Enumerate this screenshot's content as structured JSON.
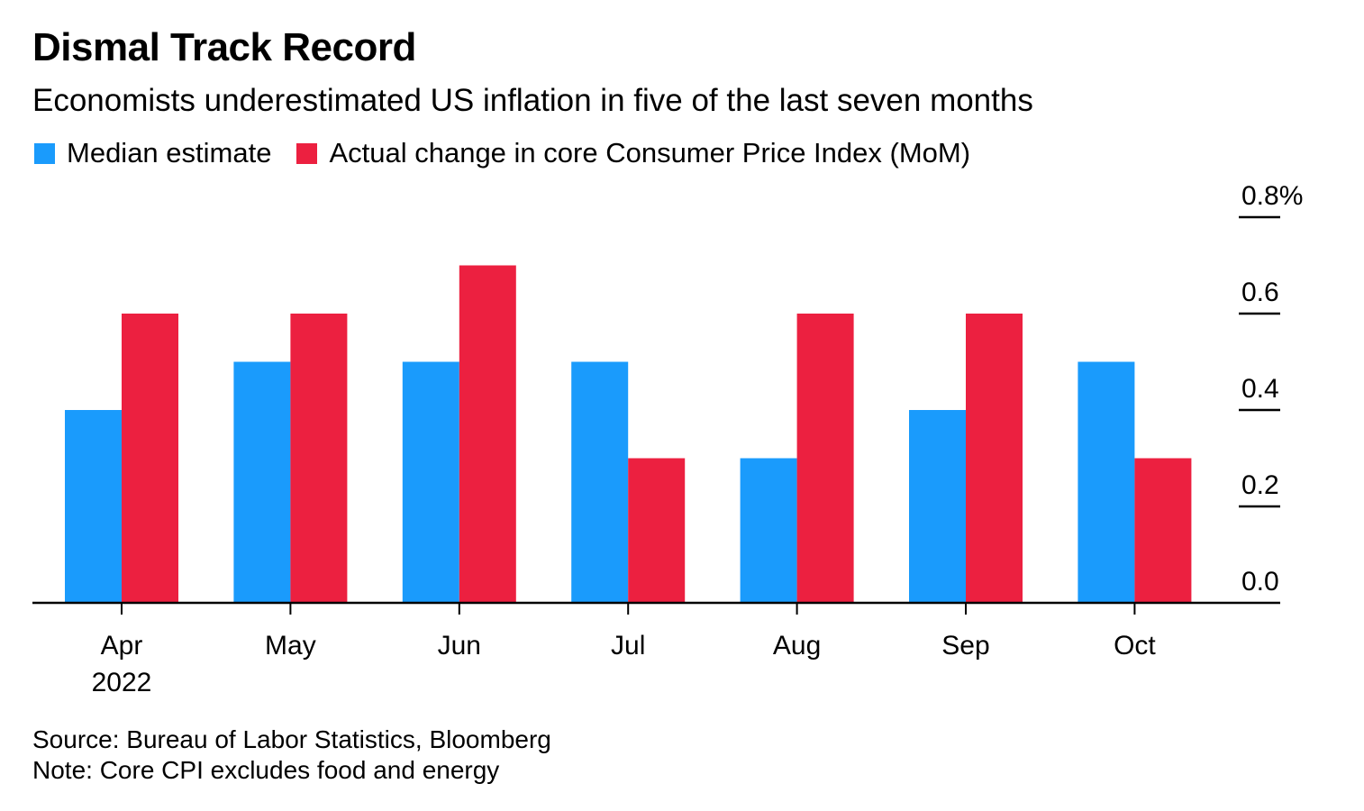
{
  "chart_data": {
    "type": "bar",
    "title": "Dismal Track Record",
    "subtitle": "Economists underestimated US inflation in five of the last seven months",
    "categories": [
      "Apr",
      "May",
      "Jun",
      "Jul",
      "Aug",
      "Sep",
      "Oct"
    ],
    "category_sublabels": [
      "2022",
      "",
      "",
      "",
      "",
      "",
      ""
    ],
    "series": [
      {
        "name": "Median estimate",
        "color": "#1a9bfc",
        "values": [
          0.4,
          0.5,
          0.5,
          0.5,
          0.3,
          0.4,
          0.5
        ]
      },
      {
        "name": "Actual change in core Consumer Price Index (MoM)",
        "color": "#ec2040",
        "values": [
          0.6,
          0.6,
          0.7,
          0.3,
          0.6,
          0.6,
          0.3
        ]
      }
    ],
    "xlabel": "",
    "ylabel": "",
    "ylim": [
      0,
      0.8
    ],
    "yticks": [
      0.0,
      0.2,
      0.4,
      0.6,
      0.8
    ],
    "ytick_labels": [
      "0.0",
      "0.2",
      "0.4",
      "0.6",
      "0.8%"
    ],
    "y_axis_position": "right",
    "grid": false,
    "legend_position": "top-left"
  },
  "footer": {
    "source": "Source: Bureau of Labor Statistics, Bloomberg",
    "note": "Note: Core CPI excludes food and energy"
  }
}
